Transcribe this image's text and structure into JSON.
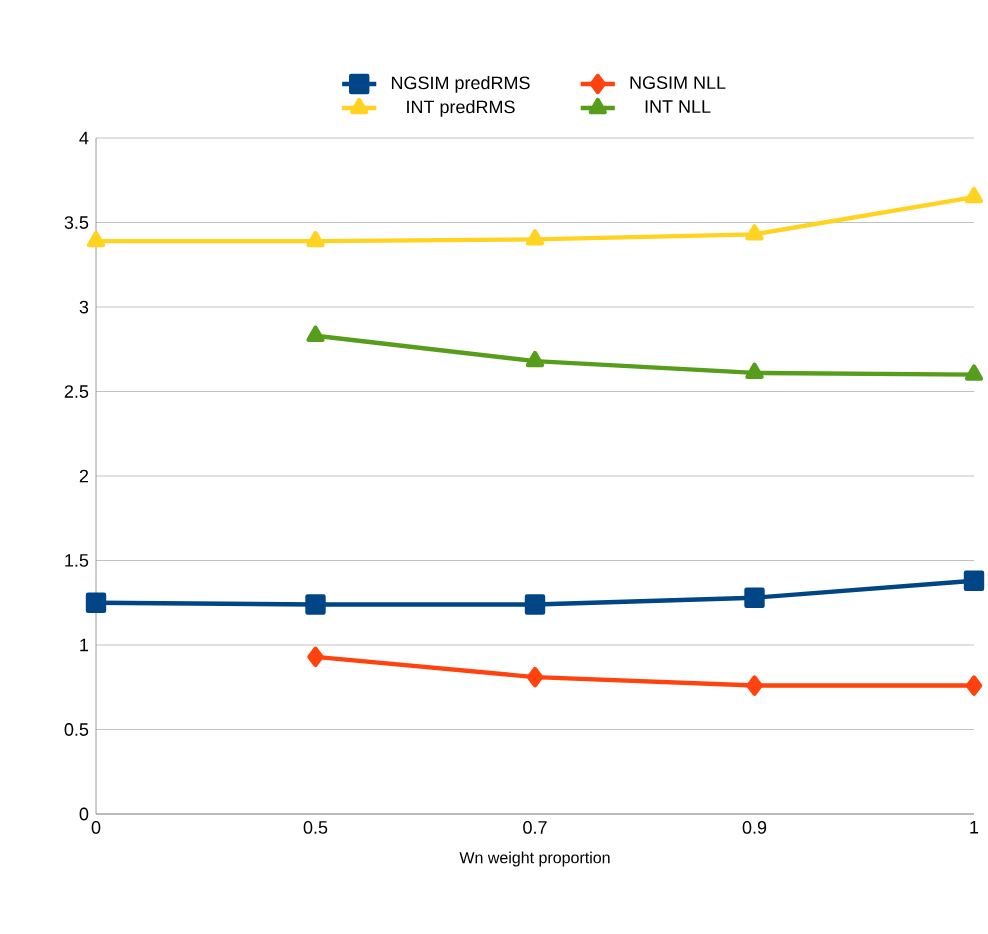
{
  "chart_data": {
    "type": "line",
    "xlabel": "Wn weight proportion",
    "categories": [
      "0",
      "0.5",
      "0.7",
      "0.9",
      "1"
    ],
    "ylim": [
      0,
      4
    ],
    "yticks": [
      0,
      0.5,
      1,
      1.5,
      2,
      2.5,
      3,
      3.5,
      4
    ],
    "grid": "y",
    "legend": "top",
    "series": [
      {
        "name": "NGSIM predRMS",
        "color": "#004586",
        "marker": "square",
        "values": [
          1.25,
          1.24,
          1.24,
          1.28,
          1.38
        ]
      },
      {
        "name": "NGSIM NLL",
        "color": "#ff420e",
        "marker": "diamond",
        "values": [
          null,
          0.93,
          0.81,
          0.76,
          0.76
        ]
      },
      {
        "name": "INT predRMS",
        "color": "#ffd320",
        "marker": "triangle-down",
        "values": [
          3.39,
          3.39,
          3.4,
          3.43,
          3.65
        ]
      },
      {
        "name": "INT NLL",
        "color": "#579d1c",
        "marker": "triangle",
        "values": [
          null,
          2.83,
          2.68,
          2.61,
          2.6
        ]
      }
    ]
  }
}
